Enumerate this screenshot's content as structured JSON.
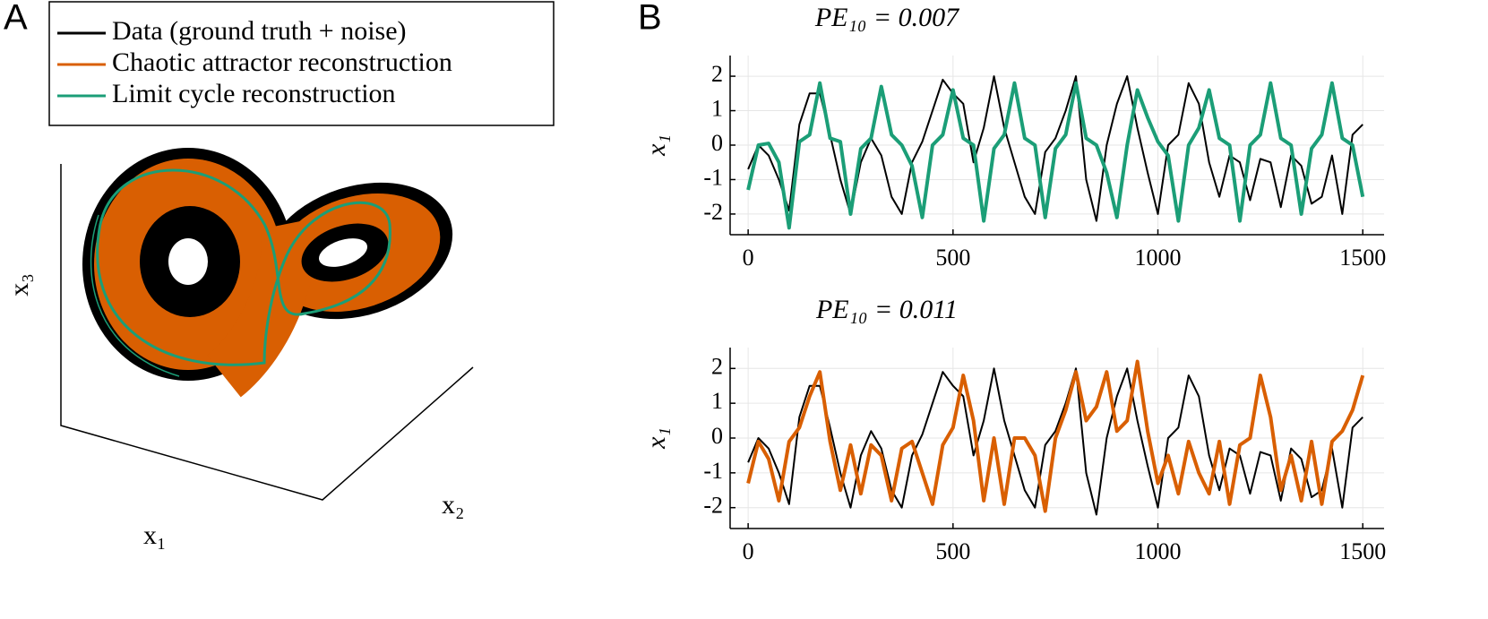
{
  "chart_data": [
    {
      "type": "line3d",
      "panel": "A",
      "x_label": "x₁",
      "y_label": "x₂",
      "z_label": "x₃",
      "series": [
        {
          "name": "Data (ground truth + noise)",
          "color": "#000000"
        },
        {
          "name": "Chaotic attractor reconstruction",
          "color": "#d95f02"
        },
        {
          "name": "Limit cycle reconstruction",
          "color": "#1b9e77"
        }
      ]
    },
    {
      "type": "line",
      "panel": "B",
      "title": "PE₁₀ = 0.007",
      "ylabel": "x₁",
      "xlim": [
        -44,
        1552
      ],
      "ylim": [
        -2.6,
        2.6
      ],
      "xticks": [
        0,
        500,
        1000,
        1500
      ],
      "yticks": [
        -2,
        -1,
        0,
        1,
        2
      ],
      "grid": true,
      "x": [
        0,
        25,
        50,
        75,
        100,
        125,
        150,
        175,
        200,
        225,
        250,
        275,
        300,
        325,
        350,
        375,
        400,
        425,
        450,
        475,
        500,
        525,
        550,
        575,
        600,
        625,
        650,
        675,
        700,
        725,
        750,
        775,
        800,
        825,
        850,
        875,
        900,
        925,
        950,
        975,
        1000,
        1025,
        1050,
        1075,
        1100,
        1125,
        1150,
        1175,
        1200,
        1225,
        1250,
        1275,
        1300,
        1325,
        1350,
        1375,
        1400,
        1425,
        1450,
        1475,
        1500
      ],
      "series": [
        {
          "name": "Data (ground truth + noise)",
          "color": "#000000",
          "width": 2,
          "values": [
            -0.7,
            0.0,
            -0.3,
            -1.0,
            -1.9,
            0.6,
            1.5,
            1.5,
            0.3,
            -1.0,
            -2.0,
            -0.5,
            0.2,
            -0.3,
            -1.5,
            -2.0,
            -0.5,
            0.1,
            1.0,
            1.9,
            1.5,
            1.2,
            -0.5,
            0.5,
            2.0,
            0.5,
            -0.5,
            -1.5,
            -2.0,
            -0.2,
            0.2,
            1.0,
            2.0,
            -1.0,
            -2.2,
            0.0,
            1.2,
            2.0,
            0.5,
            -0.8,
            -2.0,
            0.0,
            0.3,
            1.8,
            1.2,
            -0.5,
            -1.5,
            -0.3,
            -0.5,
            -1.6,
            -0.4,
            -0.5,
            -1.8,
            -0.3,
            -0.6,
            -1.7,
            -1.5,
            -0.3,
            -2.0,
            0.3,
            0.6
          ]
        },
        {
          "name": "Limit cycle reconstruction",
          "color": "#1b9e77",
          "width": 4,
          "values": [
            -1.3,
            0.0,
            0.05,
            -0.5,
            -2.4,
            0.1,
            0.3,
            1.8,
            0.2,
            0.1,
            -2.0,
            -0.1,
            0.2,
            1.7,
            0.3,
            0.0,
            -0.6,
            -2.1,
            0.0,
            0.3,
            1.6,
            0.2,
            0.0,
            -2.2,
            -0.1,
            0.3,
            1.8,
            0.2,
            0.0,
            -2.1,
            -0.1,
            0.3,
            1.8,
            0.2,
            0.0,
            -0.8,
            -2.1,
            0.0,
            1.6,
            0.8,
            0.1,
            -0.3,
            -2.2,
            0.0,
            0.5,
            1.6,
            0.2,
            0.0,
            -2.2,
            0.0,
            0.3,
            1.8,
            0.2,
            0.0,
            -2.0,
            -0.1,
            0.3,
            1.8,
            0.2,
            0.0,
            -1.5
          ]
        }
      ]
    },
    {
      "type": "line",
      "panel": "",
      "title": "PE₁₀ = 0.011",
      "ylabel": "x₁",
      "xlim": [
        -44,
        1552
      ],
      "ylim": [
        -2.6,
        2.6
      ],
      "xticks": [
        0,
        500,
        1000,
        1500
      ],
      "yticks": [
        -2,
        -1,
        0,
        1,
        2
      ],
      "grid": true,
      "x": [
        0,
        25,
        50,
        75,
        100,
        125,
        150,
        175,
        200,
        225,
        250,
        275,
        300,
        325,
        350,
        375,
        400,
        425,
        450,
        475,
        500,
        525,
        550,
        575,
        600,
        625,
        650,
        675,
        700,
        725,
        750,
        775,
        800,
        825,
        850,
        875,
        900,
        925,
        950,
        975,
        1000,
        1025,
        1050,
        1075,
        1100,
        1125,
        1150,
        1175,
        1200,
        1225,
        1250,
        1275,
        1300,
        1325,
        1350,
        1375,
        1400,
        1425,
        1450,
        1475,
        1500
      ],
      "series": [
        {
          "name": "Data (ground truth + noise)",
          "color": "#000000",
          "width": 2,
          "values": [
            -0.7,
            0.0,
            -0.3,
            -1.0,
            -1.9,
            0.6,
            1.5,
            1.5,
            0.3,
            -1.0,
            -2.0,
            -0.5,
            0.2,
            -0.3,
            -1.5,
            -2.0,
            -0.5,
            0.1,
            1.0,
            1.9,
            1.5,
            1.2,
            -0.5,
            0.5,
            2.0,
            0.5,
            -0.5,
            -1.5,
            -2.0,
            -0.2,
            0.2,
            1.0,
            2.0,
            -1.0,
            -2.2,
            0.0,
            1.2,
            2.0,
            0.5,
            -0.8,
            -2.0,
            0.0,
            0.3,
            1.8,
            1.2,
            -0.5,
            -1.5,
            -0.3,
            -0.5,
            -1.6,
            -0.4,
            -0.5,
            -1.8,
            -0.3,
            -0.6,
            -1.7,
            -1.5,
            -0.3,
            -2.0,
            0.3,
            0.6
          ]
        },
        {
          "name": "Chaotic attractor reconstruction",
          "color": "#d95f02",
          "width": 4,
          "values": [
            -1.3,
            -0.1,
            -0.6,
            -1.8,
            -0.1,
            0.3,
            1.2,
            1.9,
            -0.1,
            -1.5,
            -0.2,
            -1.6,
            -0.2,
            -0.5,
            -1.8,
            -0.3,
            -0.1,
            -1.0,
            -1.9,
            -0.2,
            0.3,
            1.8,
            0.5,
            -1.8,
            0.0,
            -1.9,
            0.0,
            0.0,
            -0.5,
            -2.1,
            0.0,
            0.8,
            1.9,
            0.5,
            0.9,
            1.9,
            0.2,
            0.5,
            2.2,
            0.2,
            -1.3,
            -0.5,
            -1.6,
            -0.1,
            -1.0,
            -1.6,
            -0.1,
            -1.9,
            -0.2,
            0.0,
            1.8,
            0.6,
            -1.5,
            -0.5,
            -1.8,
            -0.1,
            -1.9,
            -0.1,
            0.2,
            0.8,
            1.8
          ]
        }
      ]
    }
  ]
}
